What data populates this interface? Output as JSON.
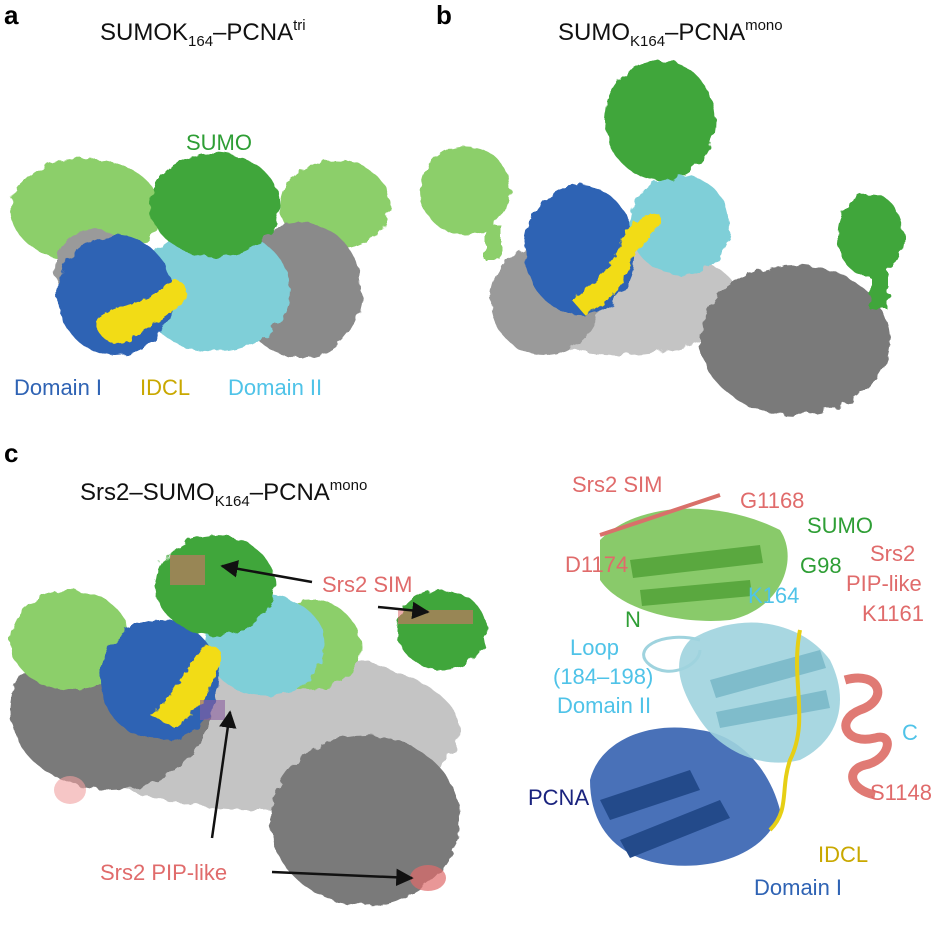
{
  "colors": {
    "domain1": "#2f63b4",
    "idcl": "#f2dc18",
    "domain2": "#7fcfd8",
    "sumo": "#3fa63a",
    "sumo_light": "#8ccf6a",
    "gray_dark": "#6e6e6e",
    "gray_light": "#bdbdbd",
    "srs2": "#e06b6b",
    "pcna_text": "#1a237e",
    "domain2_text": "#4fc3e8",
    "sumo_text": "#2e9e35",
    "idcl_text": "#c9a800"
  },
  "panel_a": {
    "letter": "a",
    "title_main": "SUMOK",
    "title_sub": "164",
    "title_dash": "–PCNA",
    "title_sup": "tri",
    "sumo_label": "SUMO",
    "domain1_label": "Domain I",
    "idcl_label": "IDCL",
    "domain2_label": "Domain II"
  },
  "panel_b": {
    "letter": "b",
    "title_main": "SUMO",
    "title_sub": "K164",
    "title_dash": "–PCNA",
    "title_sup": "mono"
  },
  "panel_c": {
    "letter": "c",
    "title_pre": "Srs2–SUMO",
    "title_sub": "K164",
    "title_dash": "–PCNA",
    "title_sup": "mono",
    "srs2_sim": "Srs2 SIM",
    "srs2_pip": "Srs2 PIP-like"
  },
  "panel_c_ribbon": {
    "srs2_sim": "Srs2 SIM",
    "g1168": "G1168",
    "sumo": "SUMO",
    "d1174": "D1174",
    "g98": "G98",
    "srs2": "Srs2",
    "pip_like": "PIP-like",
    "k1161": "K1161",
    "n_sumo": "N",
    "k164": "K164",
    "loop": "Loop",
    "loop_range": "(184–198)",
    "domain2": "Domain II",
    "c_term": "C",
    "s1148": "S1148",
    "pcna": "PCNA",
    "idcl": "IDCL",
    "domain1": "Domain I"
  }
}
